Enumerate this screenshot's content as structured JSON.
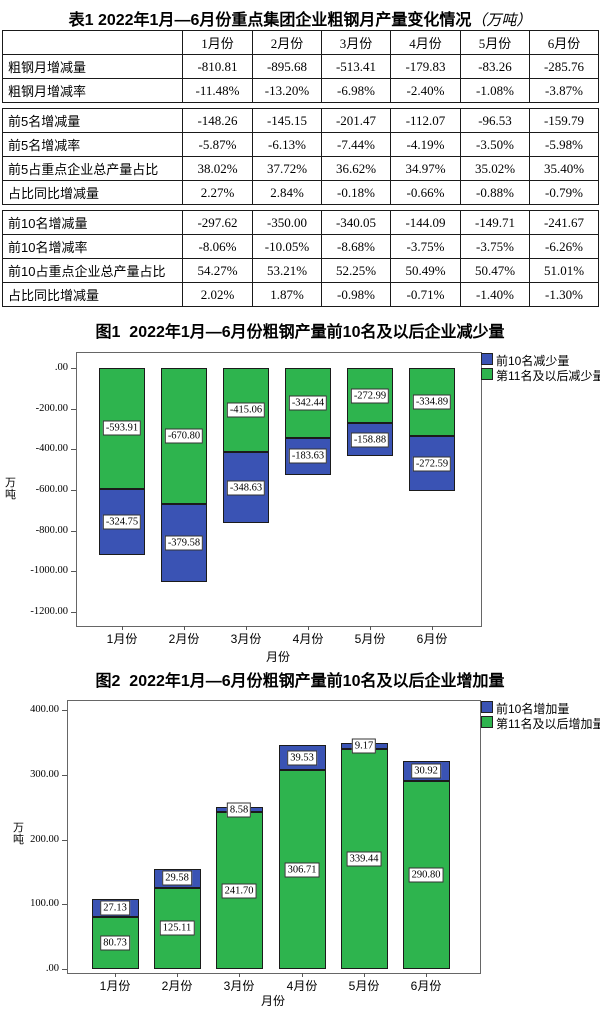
{
  "page": {
    "background": "#ffffff"
  },
  "table": {
    "title": "表1 2022年1月—6月份重点集团企业粗钢月产量变化情况",
    "unit": "（万吨）",
    "headers": [
      "",
      "1月份",
      "2月份",
      "3月份",
      "4月份",
      "5月份",
      "6月份"
    ],
    "sections": [
      {
        "rows": [
          [
            "粗钢月增减量",
            "-810.81",
            "-895.68",
            "-513.41",
            "-179.83",
            "-83.26",
            "-285.76"
          ],
          [
            "粗钢月增减率",
            "-11.48%",
            "-13.20%",
            "-6.98%",
            "-2.40%",
            "-1.08%",
            "-3.87%"
          ]
        ]
      },
      {
        "rows": [
          [
            "前5名增减量",
            "-148.26",
            "-145.15",
            "-201.47",
            "-112.07",
            "-96.53",
            "-159.79"
          ],
          [
            "前5名增减率",
            "-5.87%",
            "-6.13%",
            "-7.44%",
            "-4.19%",
            "-3.50%",
            "-5.98%"
          ],
          [
            "前5占重点企业总产量占比",
            "38.02%",
            "37.72%",
            "36.62%",
            "34.97%",
            "35.02%",
            "35.40%"
          ],
          [
            "占比同比增减量",
            "2.27%",
            "2.84%",
            "-0.18%",
            "-0.66%",
            "-0.88%",
            "-0.79%"
          ]
        ]
      },
      {
        "rows": [
          [
            "前10名增减量",
            "-297.62",
            "-350.00",
            "-340.05",
            "-144.09",
            "-149.71",
            "-241.67"
          ],
          [
            "前10名增减率",
            "-8.06%",
            "-10.05%",
            "-8.68%",
            "-3.75%",
            "-3.75%",
            "-6.26%"
          ],
          [
            "前10占重点企业总产量占比",
            "54.27%",
            "53.21%",
            "52.25%",
            "50.49%",
            "50.47%",
            "51.01%"
          ],
          [
            "占比同比增减量",
            "2.02%",
            "1.87%",
            "-0.98%",
            "-0.71%",
            "-1.40%",
            "-1.30%"
          ]
        ]
      }
    ]
  },
  "chart_data": [
    {
      "type": "bar",
      "stacked": true,
      "title": "图1  2022年1月—6月份粗钢产量前10名及以后企业减少量",
      "categories": [
        "1月份",
        "2月份",
        "3月份",
        "4月份",
        "5月份",
        "6月份"
      ],
      "series": [
        {
          "name": "前10名减少量",
          "color": "#3a53b4",
          "values": [
            "-324.75",
            "-379.58",
            "-348.63",
            "-183.63",
            "-158.88",
            "-272.59"
          ]
        },
        {
          "name": "第11名及以后减少量",
          "color": "#2eb44e",
          "values": [
            "-593.91",
            "-670.80",
            "-415.06",
            "-342.44",
            "-272.99",
            "-334.89"
          ]
        }
      ],
      "xlabel": "月份",
      "ylabel": "万吨",
      "ylim": [
        -1200,
        0
      ],
      "yticks": [
        ".00",
        "-200.00",
        "-400.00",
        "-600.00",
        "-800.00",
        "-1000.00",
        "-1200.00"
      ],
      "grid": false,
      "legend_position": "top-right-outside"
    },
    {
      "type": "bar",
      "stacked": true,
      "title": "图2  2022年1月—6月份粗钢产量前10名及以后企业增加量",
      "categories": [
        "1月份",
        "2月份",
        "3月份",
        "4月份",
        "5月份",
        "6月份"
      ],
      "series": [
        {
          "name": "前10名增加量",
          "color": "#3a53b4",
          "values": [
            "27.13",
            "29.58",
            "8.58",
            "39.53",
            "9.17",
            "30.92"
          ]
        },
        {
          "name": "第11名及以后增加量",
          "color": "#2eb44e",
          "values": [
            "80.73",
            "125.11",
            "241.70",
            "306.71",
            "339.44",
            "290.80"
          ]
        }
      ],
      "xlabel": "月份",
      "ylabel": "万吨",
      "ylim": [
        0,
        400
      ],
      "yticks": [
        "400.00",
        "300.00",
        "200.00",
        "100.00",
        ".00"
      ],
      "grid": false,
      "legend_position": "top-right-outside"
    }
  ]
}
